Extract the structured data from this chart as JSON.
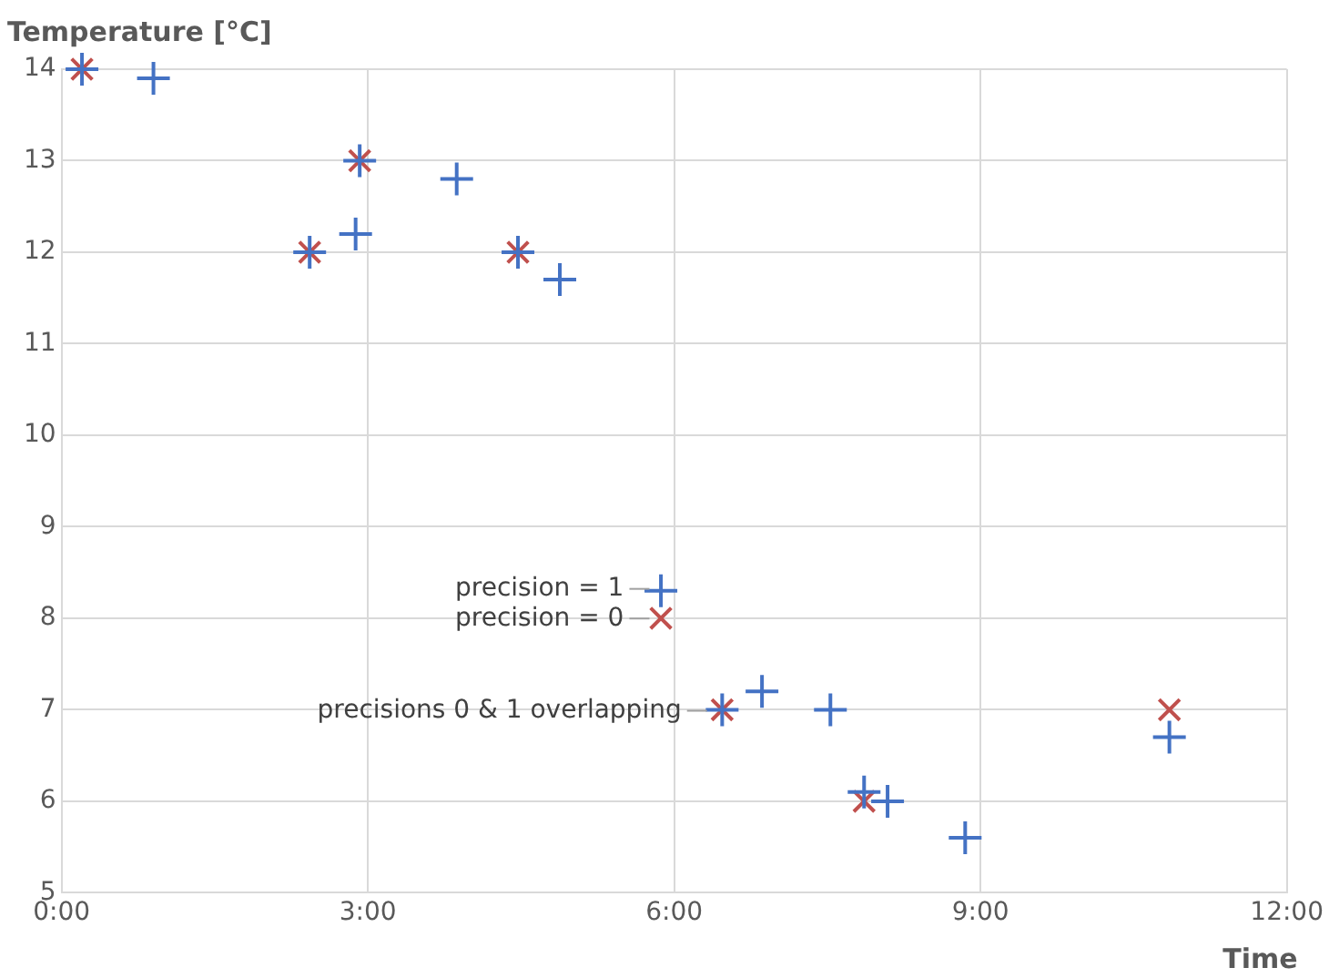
{
  "chart_data": {
    "type": "scatter",
    "xlabel": "Time",
    "ylabel": "Temperature [°C]",
    "series": [
      {
        "color": "#4472c4",
        "marker": "cross",
        "x": [
          0.2,
          0.9,
          2.43,
          2.88,
          2.92,
          3.87,
          4.47,
          4.88,
          6.47,
          6.86,
          7.53,
          7.86,
          8.09,
          8.85,
          10.85,
          5.87
        ],
        "values": [
          14,
          13.9,
          12,
          12.2,
          13,
          12.8,
          12,
          11.7,
          7,
          7.2,
          7,
          6.1,
          6,
          5.6,
          6.7,
          8.3
        ]
      },
      {
        "color": "#c0504d",
        "marker": "x",
        "x": [
          0.2,
          2.43,
          2.92,
          4.47,
          6.47,
          7.86,
          10.85,
          5.87
        ],
        "values": [
          14,
          12,
          13,
          12,
          7,
          6,
          7,
          8
        ]
      }
    ],
    "annotations": [
      "precision = 1",
      "precision = 0",
      "precisions 0 & 1 overlapping"
    ],
    "xlim": [
      0,
      12
    ],
    "xticks": [
      {
        "value": 0,
        "label": "0:00"
      },
      {
        "value": 3,
        "label": "3:00"
      },
      {
        "value": 6,
        "label": "6:00"
      },
      {
        "value": 9,
        "label": "9:00"
      },
      {
        "value": 12,
        "label": "12:00"
      }
    ],
    "ylim": [
      5,
      14
    ],
    "yticks": [
      5,
      6,
      7,
      8,
      9,
      10,
      11,
      12,
      13,
      14
    ],
    "grid": true,
    "legend": false
  }
}
